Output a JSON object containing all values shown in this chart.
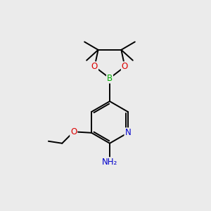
{
  "background_color": "#ebebeb",
  "bond_color": "#000000",
  "atom_colors": {
    "N": "#0000cc",
    "O": "#dd0000",
    "B": "#00aa00",
    "C": "#000000",
    "H": "#555555"
  },
  "font_size_atom": 8.5,
  "figsize": [
    3.0,
    3.0
  ],
  "dpi": 100
}
